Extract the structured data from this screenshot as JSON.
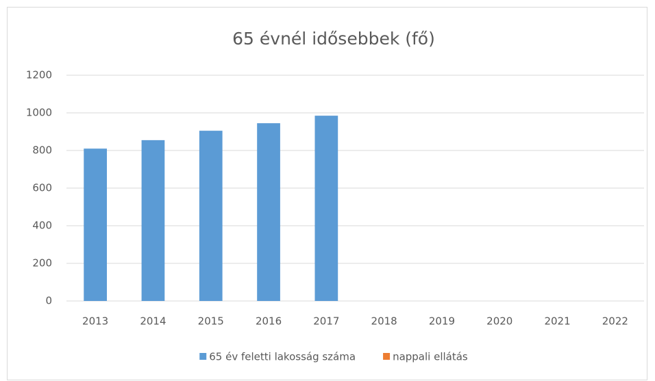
{
  "chart_data": {
    "type": "bar",
    "title": "65 évnél idősebbek (fő)",
    "categories": [
      "2013",
      "2014",
      "2015",
      "2016",
      "2017",
      "2018",
      "2019",
      "2020",
      "2021",
      "2022"
    ],
    "series": [
      {
        "name": "65 év feletti lakosság száma",
        "color": "#5b9bd5",
        "values": [
          810,
          855,
          905,
          945,
          985,
          null,
          null,
          null,
          null,
          null
        ]
      },
      {
        "name": "nappali ellátás",
        "color": "#ed7d31",
        "values": [
          null,
          null,
          null,
          null,
          null,
          null,
          null,
          null,
          null,
          null
        ]
      }
    ],
    "ylim": [
      0,
      1200
    ],
    "yticks": [
      0,
      200,
      400,
      600,
      800,
      1000,
      1200
    ],
    "grid": true,
    "legend": "bottom"
  }
}
